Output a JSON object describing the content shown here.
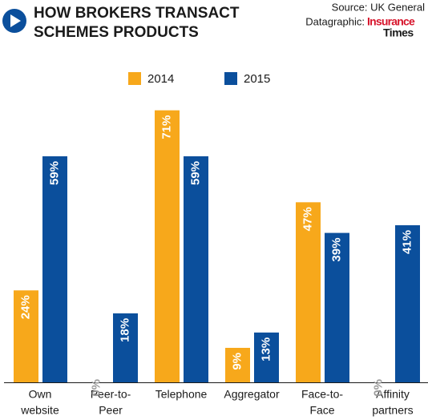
{
  "chart_data": {
    "type": "bar",
    "title": [
      "HOW BROKERS TRANSACT",
      "SCHEMES PRODUCTS"
    ],
    "source": "Source: UK General",
    "credit": "Datagraphic:",
    "logo": [
      "Insurance",
      "Times"
    ],
    "categories": [
      [
        "Own",
        "website"
      ],
      [
        "Peer-to-",
        "Peer"
      ],
      [
        "Telephone"
      ],
      [
        "Aggregator"
      ],
      [
        "Face-to-",
        "Face"
      ],
      [
        "Affinity",
        "partners"
      ]
    ],
    "series": [
      {
        "name": "2014",
        "color": "#f7a81b",
        "values": [
          24,
          0,
          71,
          9,
          47,
          0
        ],
        "value_labels": [
          "24%",
          "0%",
          "71%",
          "9%",
          "47%",
          "0%"
        ]
      },
      {
        "name": "2015",
        "color": "#0b4f9c",
        "values": [
          59,
          18,
          59,
          13,
          39,
          41
        ],
        "value_labels": [
          "59%",
          "18%",
          "59%",
          "13%",
          "39%",
          "41%"
        ]
      }
    ]
  }
}
